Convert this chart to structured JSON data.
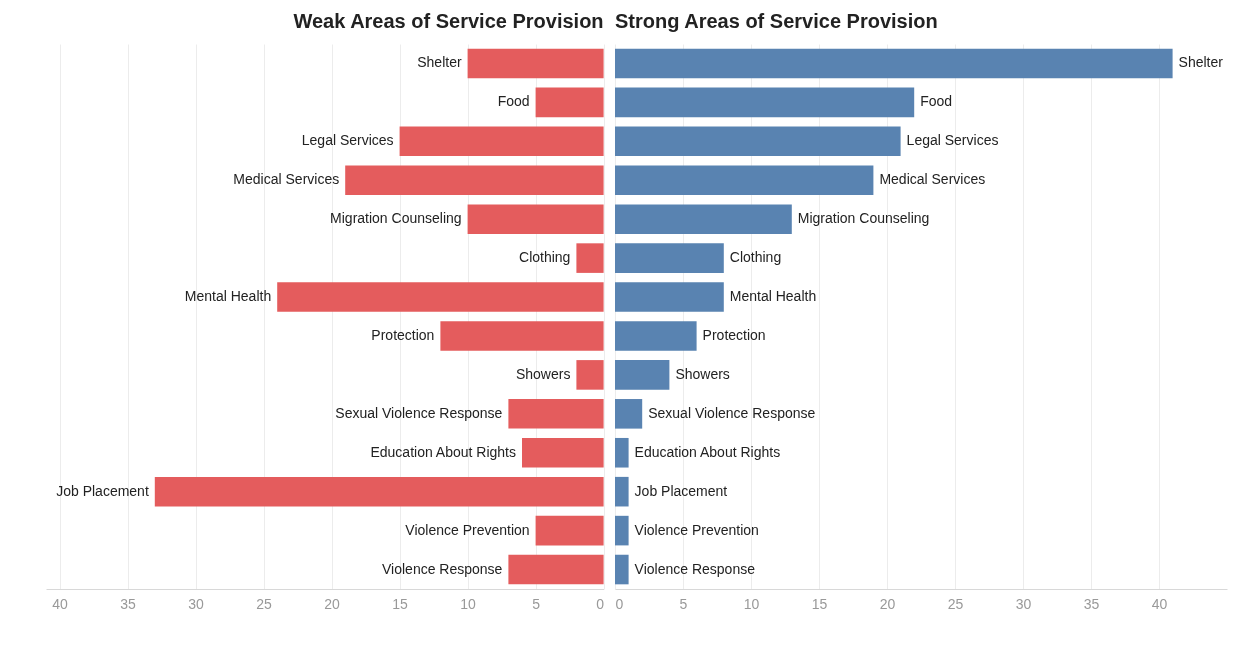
{
  "chart_data": [
    {
      "type": "bar",
      "orientation": "horizontal",
      "title": "Weak Areas of Service Provision",
      "categories": [
        "Shelter",
        "Food",
        "Legal Services",
        "Medical Services",
        "Migration Counseling",
        "Clothing",
        "Mental Health",
        "Protection",
        "Showers",
        "Sexual Violence Response",
        "Education About Rights",
        "Job Placement",
        "Violence Prevention",
        "Violence Response"
      ],
      "series": [
        {
          "color": "#e45c5d",
          "values": [
            10,
            5,
            15,
            19,
            10,
            2,
            24,
            12,
            2,
            7,
            6,
            33,
            5,
            7
          ]
        }
      ],
      "xlim": [
        41,
        0
      ],
      "xticks": [
        40,
        35,
        30,
        25,
        20,
        15,
        10,
        5,
        0
      ],
      "grid": "x",
      "tick_labels": "x"
    },
    {
      "type": "bar",
      "orientation": "horizontal",
      "title": "Strong Areas of Service Provision",
      "categories": [
        "Shelter",
        "Food",
        "Legal Services",
        "Medical Services",
        "Migration Counseling",
        "Clothing",
        "Mental Health",
        "Protection",
        "Showers",
        "Sexual Violence Response",
        "Education About Rights",
        "Job Placement",
        "Violence Prevention",
        "Violence Response"
      ],
      "series": [
        {
          "color": "#5983b1",
          "values": [
            41,
            22,
            21,
            19,
            13,
            8,
            8,
            6,
            4,
            2,
            1,
            1,
            1,
            1
          ]
        }
      ],
      "xlim": [
        0,
        45
      ],
      "xticks": [
        0,
        5,
        10,
        15,
        20,
        25,
        30,
        35,
        40
      ],
      "grid": "x",
      "tick_labels": "x"
    }
  ]
}
